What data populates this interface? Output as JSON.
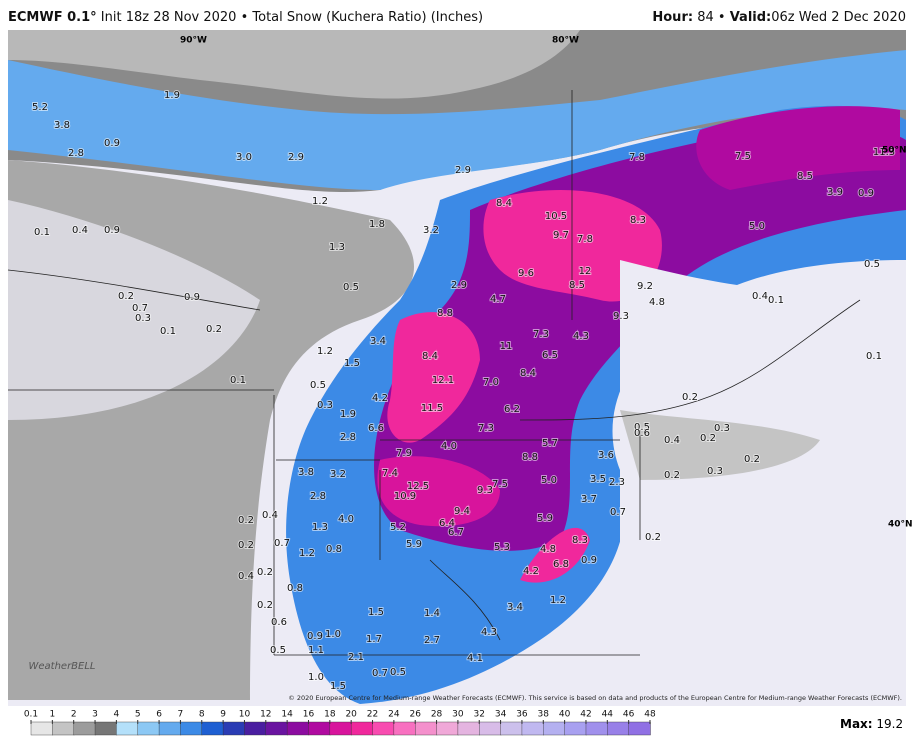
{
  "header": {
    "model": "ECMWF 0.1°",
    "description": "Init 18z 28 Nov 2020 • Total Snow (Kuchera Ratio) (Inches)",
    "hour_label": "Hour:",
    "hour": "84",
    "separator": "•",
    "valid_label": "Valid:",
    "valid": "06z Wed 2 Dec 2020"
  },
  "map": {
    "grid_labels": [
      "90°W",
      "80°W",
      "50°N",
      "40°N"
    ],
    "labels": [
      "5.2",
      "1.9",
      "3.8",
      "0.9",
      "2.8",
      "3.0",
      "2.9",
      "2.9",
      "7.8",
      "7.5",
      "11.3",
      "8.5",
      "3.9",
      "0.9",
      "8.4",
      "10.5",
      "8.3",
      "5.0",
      "9.7",
      "7.8",
      "1.3",
      "3.2",
      "1.8",
      "1.2",
      "0.1",
      "0.4",
      "0.9",
      "9.6",
      "12",
      "8.5",
      "9.2",
      "2.9",
      "0.5",
      "0.5",
      "4.8",
      "9.3",
      "0.4",
      "0.1",
      "0.2",
      "0.7",
      "0.9",
      "0.3",
      "0.1",
      "0.2",
      "8.8",
      "4.7",
      "7.3",
      "4.3",
      "3.4",
      "1.2",
      "1.5",
      "8.4",
      "11",
      "6.5",
      "8.4",
      "0.1",
      "12.1",
      "7.0",
      "0.5",
      "0.3",
      "4.2",
      "11.5",
      "6.2",
      "0.2",
      "0.1",
      "1.9",
      "6.6",
      "7.3",
      "5.7",
      "0.5",
      "0.4",
      "0.2",
      "0.3",
      "0.6",
      "2.8",
      "7.9",
      "4.0",
      "8.8",
      "3.6",
      "0.2",
      "3.8",
      "3.2",
      "7.4",
      "5.0",
      "3.5",
      "0.2",
      "0.3",
      "12.5",
      "9.3",
      "7.5",
      "2.3",
      "2.8",
      "10.9",
      "3.7",
      "9.4",
      "0.7",
      "4.0",
      "5.9",
      "0.4",
      "0.2",
      "1.3",
      "5.2",
      "6.4",
      "6.7",
      "8.3",
      "0.2",
      "0.7",
      "5.9",
      "5.3",
      "4.8",
      "1.2",
      "0.8",
      "0.2",
      "6.8",
      "0.9",
      "0.2",
      "0.4",
      "4.2",
      "0.8",
      "1.2",
      "0.2",
      "1.5",
      "1.4",
      "3.4",
      "0.6",
      "0.9",
      "1.0",
      "1.7",
      "2.7",
      "4.3",
      "0.5",
      "1.1",
      "2.1",
      "4.1",
      "0.7",
      "0.5",
      "1.0",
      "1.5"
    ],
    "logo": "WeatherBELL",
    "credit": "© 2020 European Centre for Medium-range Weather Forecasts (ECMWF). This service is based on data and products of the European Centre for Medium-range Weather Forecasts (ECMWF)."
  },
  "colorbar": {
    "ticks": [
      0.1,
      1,
      2,
      3,
      4,
      5,
      6,
      7,
      8,
      9,
      10,
      12,
      14,
      16,
      18,
      20,
      22,
      24,
      26,
      28,
      30,
      32,
      34,
      36,
      38,
      40,
      42,
      44,
      46,
      48
    ],
    "colors": [
      "#e6e6e6",
      "#c4c4c4",
      "#9c9c9c",
      "#767676",
      "#b4e0fa",
      "#8cc8f4",
      "#64aaee",
      "#3c8ae6",
      "#1e5fd2",
      "#2a3cb4",
      "#4a1ea0",
      "#6a14a0",
      "#8c0ca0",
      "#b00aa0",
      "#d8149c",
      "#f0289c",
      "#f84cb0",
      "#f870c0",
      "#f490cc",
      "#f0a8d8",
      "#e4b4e0",
      "#d8bce8",
      "#ccc0ec",
      "#c0b8f0",
      "#b4b0f0",
      "#a8a0f0",
      "#a090ec",
      "#9880e8",
      "#9070e4"
    ]
  },
  "max_label": "Max:",
  "max_value": "19.2"
}
